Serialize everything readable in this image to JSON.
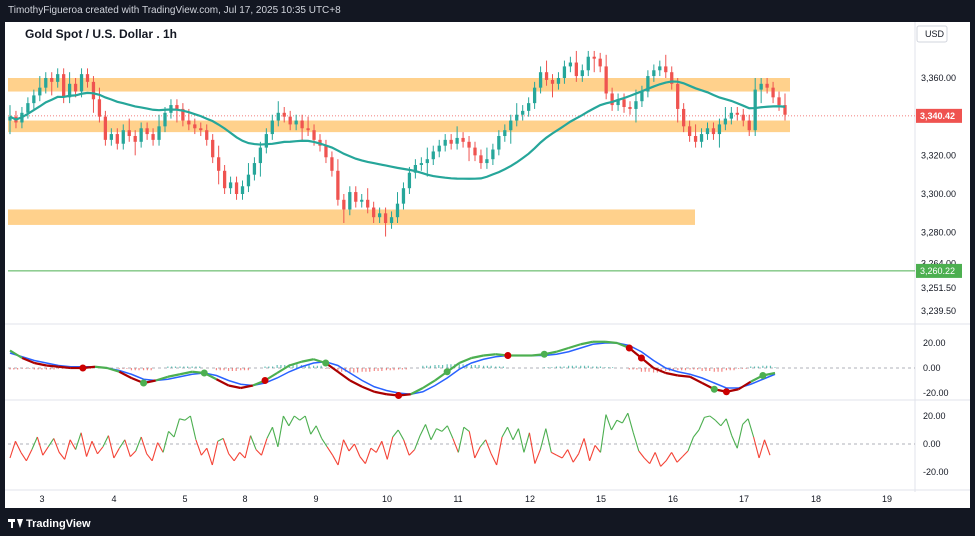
{
  "header": {
    "attribution": "TimothyFigueroa created with TradingView.com, Jul 17, 2025 10:35 UTC+8"
  },
  "footer": {
    "brand": "TradingView"
  },
  "chart_data": [
    {
      "type": "candlestick",
      "title": "Gold Spot / U.S. Dollar . 1h",
      "currency": "USD",
      "y_ticks": [
        "3,360.00",
        "3,340.00",
        "3,320.00",
        "3,300.00",
        "3,280.00",
        "3,264.00",
        "3,251.50",
        "3,239.50"
      ],
      "y_tick_values": [
        3360,
        3340,
        3320,
        3300,
        3280,
        3264,
        3251.5,
        3239.5
      ],
      "x_ticks": [
        "3",
        "4",
        "5",
        "8",
        "9",
        "10",
        "11",
        "12",
        "15",
        "16",
        "17",
        "18",
        "19"
      ],
      "last_price_label": "3,340.42",
      "last_price": 3340.42,
      "horizontal_line_label": "3,260.22",
      "horizontal_line": 3260.22,
      "zones": [
        {
          "from": 3353,
          "to": 3360
        },
        {
          "from": 3332,
          "to": 3338
        },
        {
          "from": 3284,
          "to": 3292
        }
      ],
      "ma_color": "#26a69a",
      "up_color": "#26a69a",
      "down_color": "#ef5350",
      "zone_color": "#ffcc80",
      "closes": [
        3340,
        3337,
        3342,
        3347,
        3351,
        3355,
        3360,
        3358,
        3362,
        3350,
        3357,
        3353,
        3362,
        3358,
        3349,
        3340,
        3328,
        3331,
        3326,
        3333,
        3330,
        3327,
        3334,
        3331,
        3328,
        3335,
        3342,
        3346,
        3344,
        3338,
        3336,
        3334,
        3333,
        3328,
        3319,
        3312,
        3303,
        3306,
        3300,
        3304,
        3310,
        3316,
        3324,
        3331,
        3338,
        3342,
        3340,
        3336,
        3338,
        3334,
        3333,
        3328,
        3325,
        3319,
        3312,
        3297,
        3292,
        3301,
        3296,
        3297,
        3293,
        3288,
        3290,
        3285,
        3288,
        3295,
        3303,
        3311,
        3315,
        3316,
        3318,
        3322,
        3325,
        3328,
        3326,
        3329,
        3327,
        3324,
        3320,
        3316,
        3318,
        3323,
        3330,
        3333,
        3338,
        3341,
        3343,
        3347,
        3355,
        3363,
        3359,
        3357,
        3360,
        3366,
        3368,
        3361,
        3364,
        3371,
        3370,
        3366,
        3352,
        3346,
        3349,
        3345,
        3344,
        3348,
        3353,
        3361,
        3364,
        3366,
        3363,
        3357,
        3344,
        3335,
        3330,
        3327,
        3331,
        3334,
        3331,
        3336,
        3339,
        3342,
        3341,
        3338,
        3333,
        3354,
        3357,
        3355,
        3350,
        3346,
        3341
      ]
    },
    {
      "type": "line",
      "name": "oscillator",
      "y_ticks": [
        "20.00",
        "0.00",
        "-20.00"
      ],
      "y_tick_values": [
        20,
        0,
        -20
      ],
      "series": [
        {
          "name": "fast",
          "color": "#aa0000",
          "values": [
            14,
            8,
            4,
            2,
            1,
            0,
            0,
            1,
            0,
            -3,
            -8,
            -12,
            -10,
            -7,
            -5,
            -3,
            -4,
            -9,
            -14,
            -16,
            -14,
            -10,
            -4,
            2,
            5,
            7,
            4,
            -3,
            -10,
            -15,
            -19,
            -21,
            -22,
            -21,
            -16,
            -10,
            -3,
            4,
            8,
            10,
            11,
            10,
            10,
            10,
            11,
            13,
            16,
            19,
            21,
            21,
            20,
            16,
            8,
            0,
            -4,
            -6,
            -7,
            -12,
            -17,
            -19,
            -17,
            -11,
            -6,
            -4
          ]
        },
        {
          "name": "slow",
          "color": "#2962ff",
          "values": [
            12,
            9,
            6,
            4,
            2,
            1,
            1,
            1,
            0,
            -2,
            -5,
            -9,
            -10,
            -9,
            -7,
            -5,
            -4,
            -6,
            -10,
            -13,
            -14,
            -12,
            -8,
            -3,
            1,
            4,
            5,
            2,
            -4,
            -10,
            -15,
            -18,
            -20,
            -21,
            -19,
            -14,
            -8,
            -1,
            4,
            7,
            9,
            10,
            10,
            10,
            10,
            11,
            13,
            16,
            19,
            20,
            20,
            18,
            13,
            6,
            0,
            -3,
            -5,
            -8,
            -12,
            -16,
            -16,
            -13,
            -9,
            -5
          ]
        },
        {
          "name": "histogram",
          "values": [
            -2,
            -1,
            -2,
            -2,
            -1,
            -1,
            -1,
            0,
            0,
            -1,
            -3,
            -3,
            0,
            2,
            2,
            2,
            0,
            -3,
            -4,
            -3,
            0,
            2,
            4,
            5,
            4,
            3,
            -1,
            -5,
            -6,
            -5,
            -4,
            -3,
            -2,
            0,
            3,
            4,
            5,
            5,
            4,
            3,
            2,
            0,
            0,
            0,
            1,
            2,
            3,
            3,
            2,
            1,
            0,
            -2,
            -5,
            -6,
            -4,
            -3,
            -2,
            -4,
            -5,
            -3,
            -1,
            2,
            3,
            1
          ]
        }
      ],
      "crossover_markers": [
        "red",
        "green",
        "green",
        "red",
        "green",
        "red",
        "green",
        "red",
        "green",
        "red",
        "red",
        "green",
        "red",
        "green"
      ]
    },
    {
      "type": "line",
      "name": "oscillator-2",
      "y_ticks": [
        "20.00",
        "0.00",
        "-20.00"
      ],
      "y_tick_values": [
        20,
        0,
        -20
      ],
      "series": [
        {
          "name": "line",
          "values": [
            -10,
            2,
            -6,
            -12,
            -4,
            5,
            -8,
            -2,
            4,
            -6,
            -11,
            3,
            -4,
            8,
            -9,
            2,
            -7,
            -2,
            6,
            -10,
            -3,
            3,
            -9,
            -5,
            5,
            -7,
            -12,
            1,
            -6,
            9,
            5,
            18,
            17,
            20,
            3,
            -8,
            -3,
            -15,
            2,
            4,
            -7,
            -12,
            -6,
            -10,
            6,
            -4,
            -8,
            4,
            12,
            -2,
            20,
            13,
            20,
            17,
            20,
            7,
            13,
            4,
            -2,
            -8,
            -15,
            3,
            -5,
            0,
            -9,
            -14,
            -3,
            -6,
            2,
            -11,
            5,
            10,
            3,
            -8,
            -4,
            6,
            14,
            3,
            11,
            9,
            13,
            4,
            -6,
            12,
            9,
            -10,
            -2,
            3,
            -7,
            -15,
            5,
            12,
            3,
            11,
            -6,
            8,
            -14,
            -4,
            11,
            -6,
            -8,
            -10,
            -4,
            -13,
            -7,
            4,
            -12,
            -1,
            -6,
            21,
            10,
            17,
            15,
            22,
            8,
            -5,
            -10,
            -14,
            -6,
            -16,
            -12,
            -6,
            -13,
            -9,
            -5,
            5,
            10,
            19,
            20,
            17,
            13,
            18,
            6,
            -3,
            14,
            18,
            5,
            -10,
            3,
            -8
          ]
        }
      ]
    }
  ]
}
